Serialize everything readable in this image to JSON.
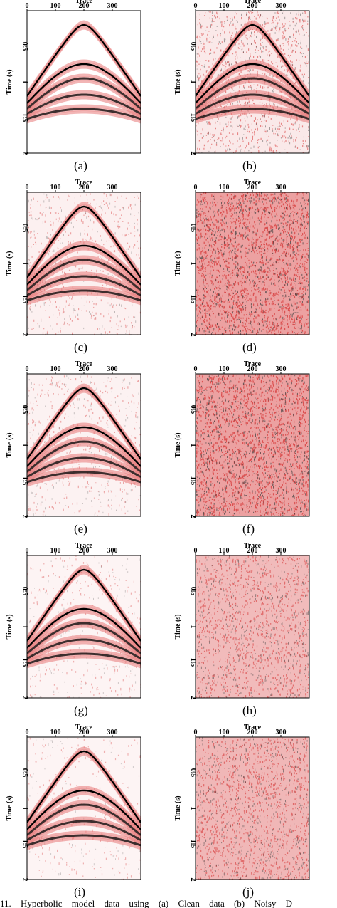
{
  "figure": {
    "axes": {
      "x_label": "Trace",
      "y_label": "Time (s)",
      "x_ticks": [
        "0",
        "100",
        "200",
        "300"
      ],
      "y_ticks": [
        "0.5",
        "1",
        "1.5",
        "2"
      ]
    },
    "colors": {
      "event_core": "#000000",
      "event_halo": "#e87878",
      "noise_red": "#d94646",
      "noise_dark": "#404040",
      "background": "#ffffff"
    },
    "panels": [
      {
        "label": "(a)",
        "kind": "events",
        "noise_level": 0.0
      },
      {
        "label": "(b)",
        "kind": "events",
        "noise_level": 0.45
      },
      {
        "label": "(c)",
        "kind": "events",
        "noise_level": 0.18
      },
      {
        "label": "(d)",
        "kind": "noise",
        "noise_level": 0.95
      },
      {
        "label": "(e)",
        "kind": "events",
        "noise_level": 0.15
      },
      {
        "label": "(f)",
        "kind": "noise",
        "noise_level": 0.95
      },
      {
        "label": "(g)",
        "kind": "events",
        "noise_level": 0.08
      },
      {
        "label": "(h)",
        "kind": "noise",
        "noise_level": 0.55
      },
      {
        "label": "(i)",
        "kind": "events",
        "noise_level": 0.06
      },
      {
        "label": "(j)",
        "kind": "noise",
        "noise_level": 0.6
      }
    ],
    "events": [
      {
        "apex_time_s": 0.2,
        "edge_time_s": 1.2
      },
      {
        "apex_time_s": 0.75,
        "edge_time_s": 1.3
      },
      {
        "apex_time_s": 0.95,
        "edge_time_s": 1.38
      },
      {
        "apex_time_s": 1.18,
        "edge_time_s": 1.45
      },
      {
        "apex_time_s": 1.38,
        "edge_time_s": 1.52
      }
    ],
    "caption_fragment": "11.    Hyperbolic model data using (a) Clean data (b) Noisy D"
  }
}
